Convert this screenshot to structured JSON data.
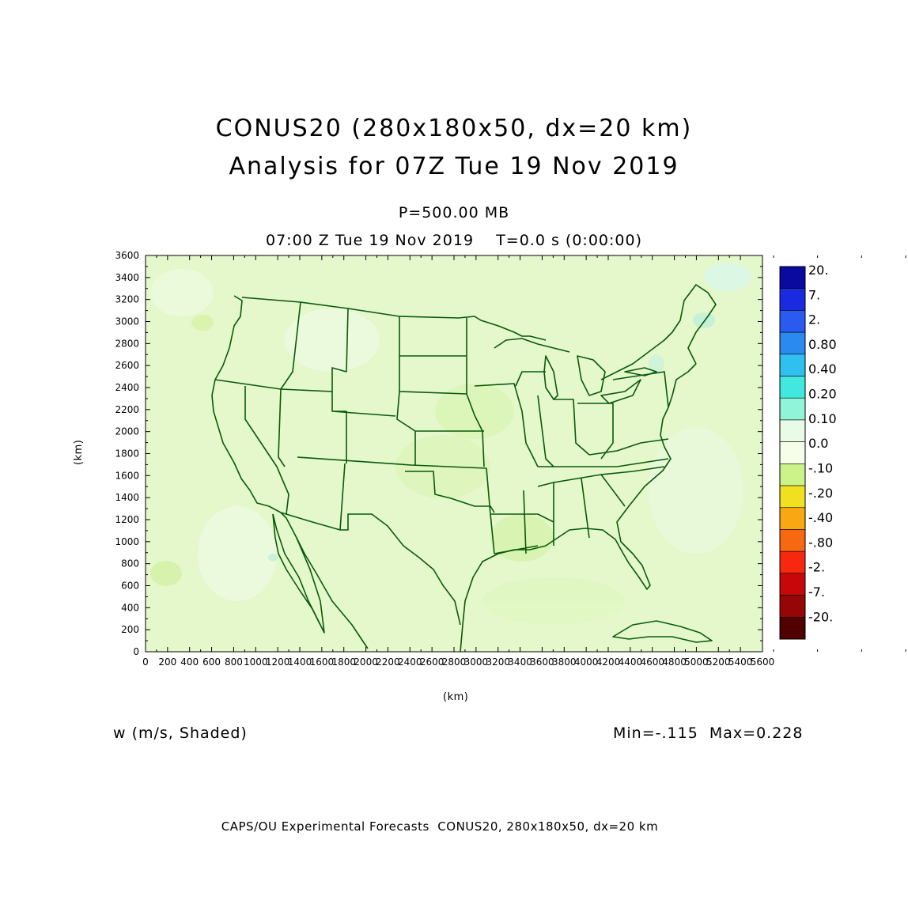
{
  "header": {
    "title_line1": "CONUS20 (280x180x50, dx=20 km)",
    "title_line2": "Analysis for 07Z Tue 19 Nov 2019",
    "level": "P=500.00 MB",
    "time_line": "07:00 Z Tue 19 Nov 2019    T=0.0 s (0:00:00)"
  },
  "axes": {
    "xlabel": "(km)",
    "ylabel": "(km)",
    "x_ticks": [
      "0",
      "200",
      "400",
      "600",
      "800",
      "1000",
      "1200",
      "1400",
      "1600",
      "1800",
      "2000",
      "2200",
      "2400",
      "2600",
      "2800",
      "3000",
      "3200",
      "3400",
      "3600",
      "3800",
      "4000",
      "4200",
      "4400",
      "4600",
      "4800",
      "5000",
      "5200",
      "5400",
      "5600"
    ],
    "y_ticks": [
      "0",
      "200",
      "400",
      "600",
      "800",
      "1000",
      "1200",
      "1400",
      "1600",
      "1800",
      "2000",
      "2200",
      "2400",
      "2600",
      "2800",
      "3000",
      "3200",
      "3400",
      "3600"
    ]
  },
  "colorbar": {
    "labels": [
      "20.",
      "7.",
      "2.",
      "0.80",
      "0.40",
      "0.20",
      "0.10",
      "0.0",
      "-.10",
      "-.20",
      "-.40",
      "-.80",
      "-2.",
      "-7.",
      "-20."
    ],
    "colors": [
      "#0a0aa0",
      "#1a2ae0",
      "#2a5af0",
      "#2a8af0",
      "#30c0f0",
      "#40e8e0",
      "#90f5d8",
      "#e8fbe6",
      "#f6fde8",
      "#ccf28a",
      "#f0e020",
      "#f8a810",
      "#f86810",
      "#f82810",
      "#c80808",
      "#960606",
      "#500000"
    ]
  },
  "field": {
    "variable": "w (m/s, Shaded)",
    "min_max": "Min=-.115  Max=0.228",
    "background_color": "#e4f8cc",
    "boundary_color": "#0a5a0a"
  },
  "footer": "CAPS/OU Experimental Forecasts  CONUS20, 280x180x50, dx=20 km"
}
